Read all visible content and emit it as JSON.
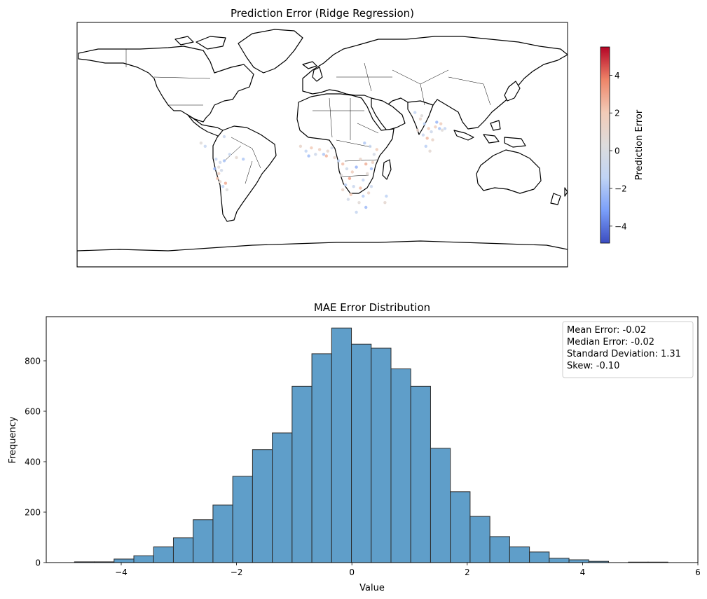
{
  "chart_data": [
    {
      "type": "scatter",
      "title": "Prediction Error (Ridge Regression)",
      "colorbar": {
        "label": "Prediction Error",
        "range": [
          -4.9,
          5.5
        ],
        "ticks": [
          "4",
          "2",
          "0",
          "−2",
          "−4"
        ],
        "tick_values": [
          4,
          2,
          0,
          -2,
          -4
        ],
        "colormap": "coolwarm",
        "colors": [
          "#3b4cc0",
          "#7b9ff9",
          "#c0d4f5",
          "#dddcdc",
          "#f2cbb7",
          "#ee8468",
          "#b40426"
        ]
      },
      "points": [
        {
          "lon": -78,
          "lat": 5,
          "v": -1.2
        },
        {
          "lon": -75,
          "lat": 3,
          "v": -0.8
        },
        {
          "lon": -76,
          "lat": 0,
          "v": 0.6
        },
        {
          "lon": -74,
          "lat": -2,
          "v": -0.5
        },
        {
          "lon": -76,
          "lat": -4,
          "v": 1.5
        },
        {
          "lon": -77,
          "lat": -7,
          "v": 2.2
        },
        {
          "lon": -75,
          "lat": -9,
          "v": 1.0
        },
        {
          "lon": -73,
          "lat": -12,
          "v": -1.5
        },
        {
          "lon": -70,
          "lat": -14,
          "v": 0.3
        },
        {
          "lon": -72,
          "lat": 4,
          "v": -2.0
        },
        {
          "lon": -68,
          "lat": 8,
          "v": -1.0
        },
        {
          "lon": -63,
          "lat": 6,
          "v": 0.8
        },
        {
          "lon": -58,
          "lat": 5,
          "v": -1.8
        },
        {
          "lon": -86,
          "lat": 13,
          "v": -1.1
        },
        {
          "lon": -89,
          "lat": 15,
          "v": 0.5
        },
        {
          "lon": -72,
          "lat": 19,
          "v": -0.9
        },
        {
          "lon": -71,
          "lat": -10,
          "v": 2.8
        },
        {
          "lon": -79,
          "lat": -1,
          "v": -2.4
        },
        {
          "lon": -16,
          "lat": 13,
          "v": 1.2
        },
        {
          "lon": -12,
          "lat": 10,
          "v": -1.3
        },
        {
          "lon": -8,
          "lat": 12,
          "v": 2.0
        },
        {
          "lon": -5,
          "lat": 8,
          "v": -0.7
        },
        {
          "lon": -2,
          "lat": 11,
          "v": 1.6
        },
        {
          "lon": 1,
          "lat": 8,
          "v": -1.9
        },
        {
          "lon": 4,
          "lat": 10,
          "v": 0.9
        },
        {
          "lon": 7,
          "lat": 12,
          "v": -0.4
        },
        {
          "lon": 3,
          "lat": 7,
          "v": 2.6
        },
        {
          "lon": -10,
          "lat": 7,
          "v": -2.2
        },
        {
          "lon": 9,
          "lat": 6,
          "v": 1.1
        },
        {
          "lon": 12,
          "lat": 4,
          "v": -1.4
        },
        {
          "lon": 15,
          "lat": 2,
          "v": 2.3
        },
        {
          "lon": 18,
          "lat": -1,
          "v": -0.6
        },
        {
          "lon": 22,
          "lat": -3,
          "v": 1.8
        },
        {
          "lon": 25,
          "lat": 0,
          "v": -2.5
        },
        {
          "lon": 14,
          "lat": -5,
          "v": 0.4
        },
        {
          "lon": 20,
          "lat": -7,
          "v": 3.1
        },
        {
          "lon": 17,
          "lat": -11,
          "v": -1.6
        },
        {
          "lon": 15,
          "lat": -14,
          "v": 1.3
        },
        {
          "lon": 23,
          "lat": -12,
          "v": -0.9
        },
        {
          "lon": 28,
          "lat": -13,
          "v": 2.4
        },
        {
          "lon": 30,
          "lat": -8,
          "v": -1.2
        },
        {
          "lon": 33,
          "lat": -4,
          "v": 0.7
        },
        {
          "lon": 36,
          "lat": -1,
          "v": -2.1
        },
        {
          "lon": 37,
          "lat": 3,
          "v": 1.5
        },
        {
          "lon": 38,
          "lat": 8,
          "v": -0.3
        },
        {
          "lon": 40,
          "lat": 11,
          "v": 1.9
        },
        {
          "lon": 35,
          "lat": 13,
          "v": -1.0
        },
        {
          "lon": 32,
          "lat": 2,
          "v": 2.7
        },
        {
          "lon": 30,
          "lat": -18,
          "v": -1.7
        },
        {
          "lon": 27,
          "lat": -22,
          "v": 0.6
        },
        {
          "lon": 32,
          "lat": -25,
          "v": -2.3
        },
        {
          "lon": 34,
          "lat": -16,
          "v": 1.4
        },
        {
          "lon": 36,
          "lat": -12,
          "v": -0.8
        },
        {
          "lon": 47,
          "lat": -18,
          "v": -1.5
        },
        {
          "lon": 46,
          "lat": -22,
          "v": 0.9
        },
        {
          "lon": 25,
          "lat": -28,
          "v": -1.1
        },
        {
          "lon": 21,
          "lat": -17,
          "v": 2.1
        },
        {
          "lon": 19,
          "lat": -20,
          "v": -0.5
        },
        {
          "lon": 28,
          "lat": 5,
          "v": 1.2
        },
        {
          "lon": 31,
          "lat": 15,
          "v": -1.8
        },
        {
          "lon": 72,
          "lat": 30,
          "v": 1.0
        },
        {
          "lon": 75,
          "lat": 27,
          "v": -1.5
        },
        {
          "lon": 78,
          "lat": 24,
          "v": 2.0
        },
        {
          "lon": 80,
          "lat": 22,
          "v": -0.7
        },
        {
          "lon": 83,
          "lat": 25,
          "v": 1.7
        },
        {
          "lon": 86,
          "lat": 24,
          "v": -2.0
        },
        {
          "lon": 88,
          "lat": 23,
          "v": 0.5
        },
        {
          "lon": 90,
          "lat": 24,
          "v": -1.2
        },
        {
          "lon": 77,
          "lat": 18,
          "v": 2.5
        },
        {
          "lon": 76,
          "lat": 13,
          "v": -1.6
        },
        {
          "lon": 79,
          "lat": 10,
          "v": 0.8
        },
        {
          "lon": 74,
          "lat": 20,
          "v": -0.9
        },
        {
          "lon": 81,
          "lat": 17,
          "v": 1.3
        },
        {
          "lon": 84,
          "lat": 28,
          "v": -2.4
        },
        {
          "lon": 70,
          "lat": 23,
          "v": 1.1
        },
        {
          "lon": 68,
          "lat": 34,
          "v": -1.3
        },
        {
          "lon": 73,
          "lat": 32,
          "v": 0.4
        },
        {
          "lon": 87,
          "lat": 27,
          "v": 1.8
        }
      ]
    },
    {
      "type": "bar",
      "title": "MAE Error Distribution",
      "xlabel": "Value",
      "ylabel": "Frequency",
      "xlim": [
        -5.3,
        6.0
      ],
      "ylim": [
        0,
        975
      ],
      "xticks": [
        -4,
        -2,
        0,
        2,
        4,
        6
      ],
      "yticks": [
        0,
        200,
        400,
        600,
        800
      ],
      "bin_start": -4.81,
      "bin_width": 0.343,
      "values": [
        3,
        3,
        14,
        27,
        62,
        98,
        170,
        228,
        342,
        448,
        514,
        699,
        828,
        930,
        866,
        850,
        768,
        699,
        453,
        281,
        183,
        103,
        62,
        42,
        17,
        11,
        5,
        0,
        2,
        2
      ],
      "annotations": [
        "Mean Error: -0.02",
        "Median Error: -0.02",
        "Standard Deviation: 1.31",
        "Skew: -0.10"
      ],
      "color": "#5f9ec9",
      "edgecolor": "#2b2b2b"
    }
  ]
}
